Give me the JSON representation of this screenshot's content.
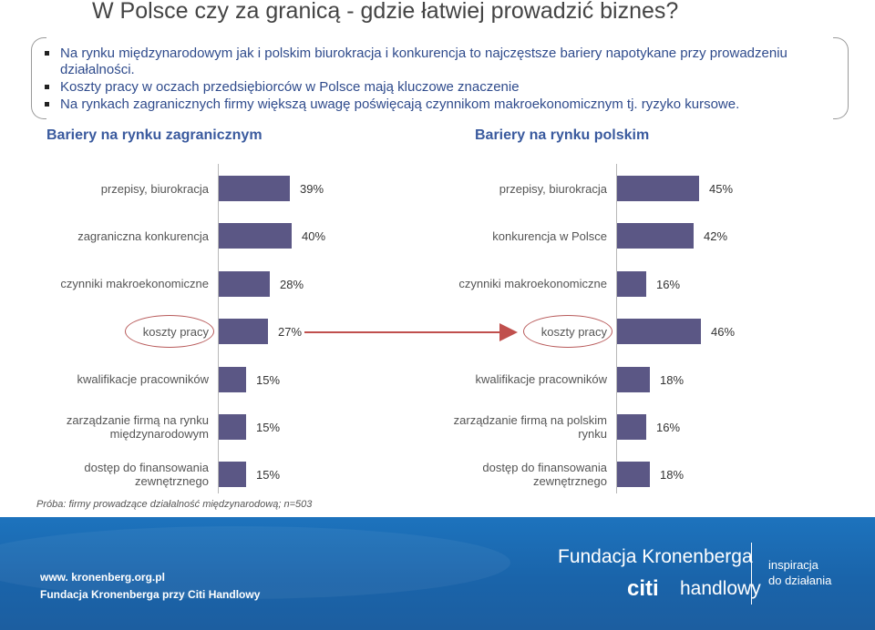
{
  "title": "W Polsce czy za granicą - gdzie łatwiej prowadzić biznes?",
  "bullets": [
    "Na rynku międzynarodowym jak i polskim biurokracja i konkurencja to najczęstsze bariery napotykane przy prowadzeniu działalności.",
    "Koszty pracy w oczach przedsiębiorców w Polsce mają kluczowe znaczenie",
    "Na rynkach zagranicznych firmy większą uwagę poświęcają czynnikom makroekonomicznym tj. ryzyko kursowe."
  ],
  "note": "Próba: firmy prowadzące działalność międzynarodową; n=503",
  "chart_data": [
    {
      "type": "bar",
      "orientation": "horizontal",
      "title": "Bariery na rynku zagranicznym",
      "categories": [
        "przepisy, biurokracja",
        "zagraniczna konkurencja",
        "czynniki makroekonomiczne",
        "koszty pracy",
        "kwalifikacje pracowników",
        "zarządzanie firmą na rynku międzynarodowym",
        "dostęp do finansowania zewnętrznego"
      ],
      "values": [
        39,
        40,
        28,
        27,
        15,
        15,
        15
      ],
      "labels": [
        "39%",
        "40%",
        "28%",
        "27%",
        "15%",
        "15%",
        "15%"
      ],
      "highlighted": "koszty pracy"
    },
    {
      "type": "bar",
      "orientation": "horizontal",
      "title": "Bariery na rynku polskim",
      "categories": [
        "przepisy, biurokracja",
        "konkurencja w Polsce",
        "czynniki makroekonomiczne",
        "koszty pracy",
        "kwalifikacje pracowników",
        "zarządzanie firmą na polskim rynku",
        "dostęp do finansowania zewnętrznego"
      ],
      "values": [
        45,
        42,
        16,
        46,
        18,
        16,
        18
      ],
      "labels": [
        "45%",
        "42%",
        "16%",
        "46%",
        "18%",
        "16%",
        "18%"
      ],
      "highlighted": "koszty pracy"
    }
  ],
  "footer": {
    "url": "www. kronenberg.org.pl",
    "org": "Fundacja Kronenberga przy Citi Handlowy",
    "logo_name": "Fundacja Kronenberga",
    "logo_citi": "citi",
    "logo_handlowy": "handlowy",
    "tagline_1": "inspiracja",
    "tagline_2": "do działania"
  },
  "colors": {
    "bar": "#5b5785",
    "arrow": "#c0504d",
    "highlight": "#b85a5a",
    "footer": "#1d6cb6"
  }
}
